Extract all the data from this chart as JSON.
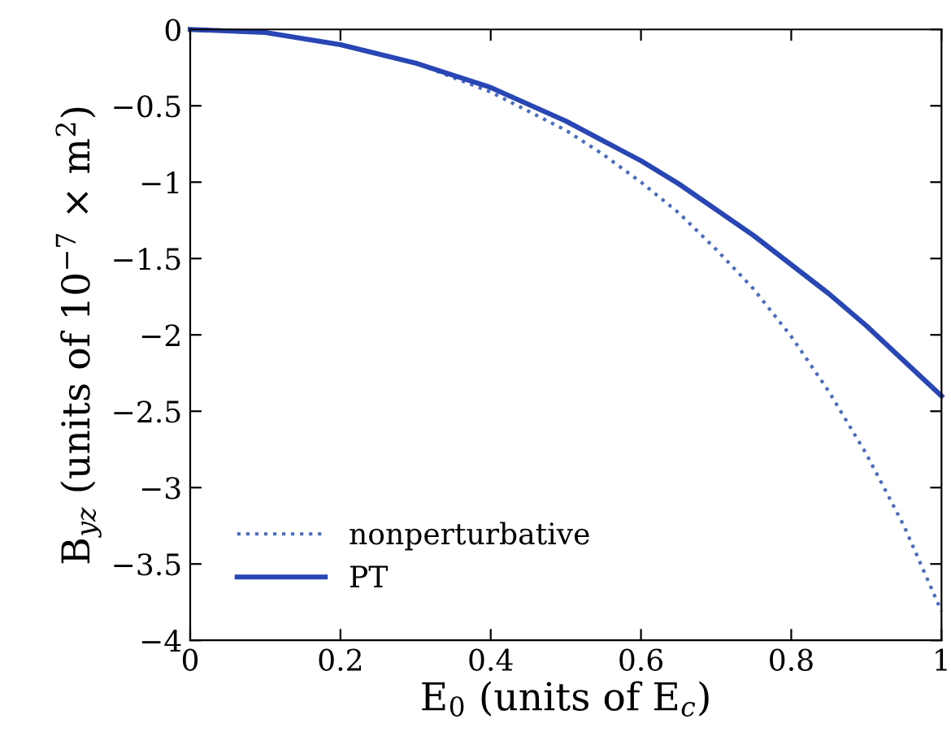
{
  "chart_data": {
    "type": "line",
    "xlabel": "E$_{0}$ (units of E$_{c}$)",
    "ylabel": "B$_{yz}$ (units of 10$^{−7}$ × m$^{2}$)",
    "xlim": [
      0,
      1
    ],
    "ylim": [
      -4,
      0
    ],
    "xticks": [
      0,
      0.2,
      0.4,
      0.6,
      0.8,
      1
    ],
    "yticks": [
      0,
      -0.5,
      -1,
      -1.5,
      -2,
      -2.5,
      -3,
      -3.5,
      -4
    ],
    "legend": "bottom left",
    "grid": false,
    "marker": "none",
    "series": [
      {
        "name": "nonperturbative",
        "color": "#4a6cc0",
        "line_style": "dotted",
        "x": [
          0,
          0.1,
          0.2,
          0.3,
          0.4,
          0.5,
          0.55,
          0.6,
          0.65,
          0.7,
          0.75,
          0.8,
          0.85,
          0.9,
          0.95,
          1
        ],
        "values": [
          0,
          -0.02,
          -0.1,
          -0.22,
          -0.41,
          -0.66,
          -0.82,
          -1.0,
          -1.2,
          -1.44,
          -1.7,
          -2.01,
          -2.37,
          -2.78,
          -3.25,
          -3.81
        ]
      },
      {
        "name": "PT",
        "color": "#2846b4",
        "line_style": "solid",
        "x": [
          0,
          0.1,
          0.2,
          0.3,
          0.4,
          0.5,
          0.55,
          0.6,
          0.65,
          0.7,
          0.75,
          0.8,
          0.85,
          0.9,
          0.95,
          1
        ],
        "values": [
          0,
          -0.02,
          -0.1,
          -0.22,
          -0.38,
          -0.6,
          -0.73,
          -0.86,
          -1.01,
          -1.18,
          -1.35,
          -1.54,
          -1.73,
          -1.94,
          -2.17,
          -2.4
        ]
      }
    ]
  }
}
